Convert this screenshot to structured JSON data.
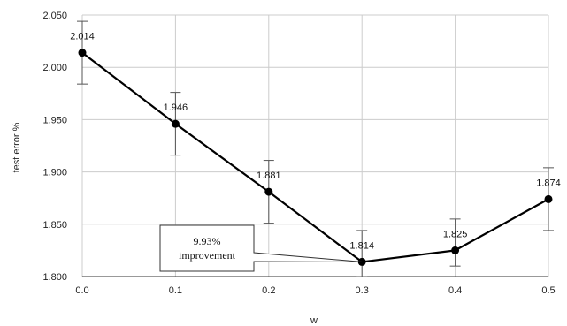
{
  "chart_data": {
    "type": "line",
    "title": "",
    "xlabel": "w",
    "ylabel": "test error %",
    "x": [
      0.0,
      0.1,
      0.2,
      0.3,
      0.4,
      0.5
    ],
    "x_tick_labels": [
      "0.0",
      "0.1",
      "0.2",
      "0.3",
      "0.4",
      "0.5"
    ],
    "y_tick_values": [
      1.8,
      1.85,
      1.9,
      1.95,
      2.0,
      2.05
    ],
    "y_tick_labels": [
      "1.800",
      "1.850",
      "1.900",
      "1.950",
      "2.000",
      "2.050"
    ],
    "xlim": [
      0.0,
      0.5
    ],
    "ylim": [
      1.8,
      2.05
    ],
    "grid": true,
    "series": [
      {
        "values": [
          2.014,
          1.946,
          1.881,
          1.814,
          1.825,
          1.874
        ],
        "data_labels": [
          "2.014",
          "1.946",
          "1.881",
          "1.814",
          "1.825",
          "1.874"
        ],
        "error_low": [
          1.984,
          1.916,
          1.851,
          1.8,
          1.81,
          1.844
        ],
        "error_high": [
          2.044,
          1.976,
          1.911,
          1.844,
          1.855,
          1.904
        ],
        "color": "#000000"
      }
    ],
    "annotation": {
      "lines": [
        "9.93%",
        "improvement"
      ],
      "target_x": 0.3,
      "target_y": 1.814
    }
  }
}
